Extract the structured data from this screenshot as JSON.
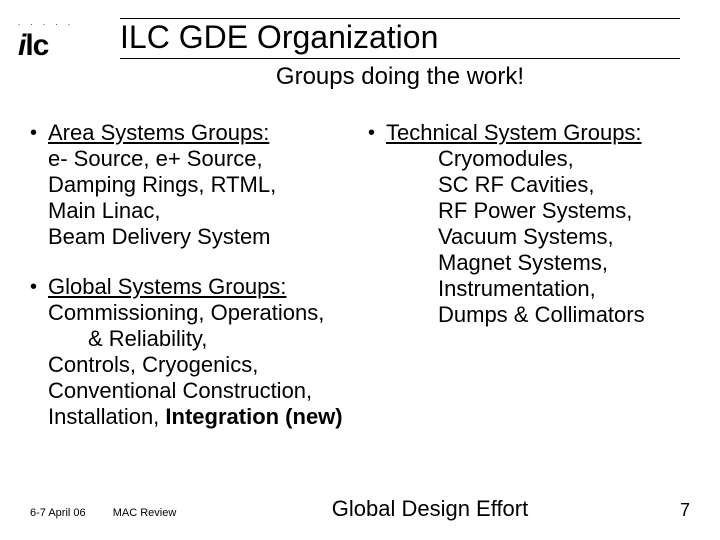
{
  "logo": {
    "dots": ". . . . .",
    "text_i": "i",
    "text_lc": "lc"
  },
  "title": "ILC GDE Organization",
  "subtitle": "Groups doing the work!",
  "left_col": {
    "area": {
      "heading": "Area Systems Groups:",
      "lines": [
        "e- Source, e+ Source,",
        "Damping Rings, RTML,",
        "Main Linac,",
        "Beam Delivery System"
      ]
    },
    "global": {
      "heading": "Global Systems Groups:",
      "lines1": "Commissioning, Operations,",
      "lines2_indent": "& Reliability,",
      "lines3": "Controls, Cryogenics,",
      "lines4": "Conventional Construction,",
      "lines5_prefix": "Installation, ",
      "lines5_bold": "Integration (new)"
    }
  },
  "right_col": {
    "tech": {
      "heading": "Technical System Groups:",
      "lines": [
        "Cryomodules,",
        "SC RF Cavities,",
        "RF Power Systems,",
        "Vacuum Systems,",
        "Magnet Systems,",
        "Instrumentation,",
        "Dumps & Collimators"
      ]
    }
  },
  "footer": {
    "date": "6-7 April 06",
    "meeting": "MAC Review",
    "center": "Global Design Effort",
    "page": "7"
  },
  "colors": {
    "text": "#000000",
    "bg": "#ffffff"
  }
}
